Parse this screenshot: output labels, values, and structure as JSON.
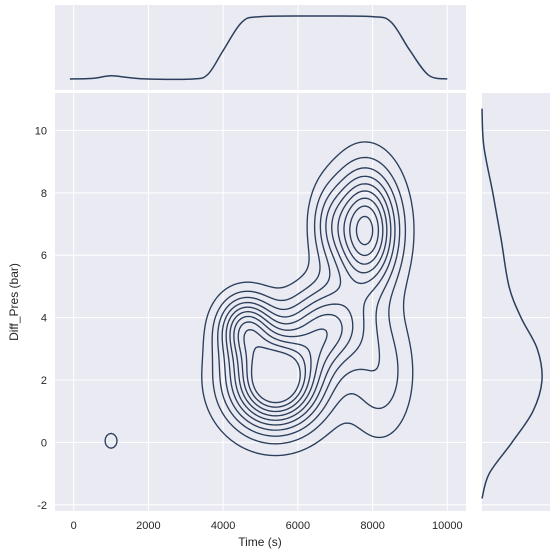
{
  "chart_data": {
    "type": "kde_joint",
    "title": "",
    "xlabel": "Time (s)",
    "ylabel": "Diff_Pres (bar)",
    "xlim": [
      -500,
      10500
    ],
    "ylim": [
      -2.2,
      11.2
    ],
    "xticks": [
      0,
      2000,
      4000,
      6000,
      8000,
      10000
    ],
    "yticks": [
      -2,
      0,
      2,
      4,
      6,
      8,
      10
    ],
    "grid": true,
    "colors": {
      "line": "#2b3f5c",
      "panel_bg": "#eaeaf2",
      "grid": "#ffffff"
    },
    "joint_density_components": [
      {
        "x": 5400,
        "y": 2.0,
        "sx": 850,
        "sy": 1.05,
        "w": 1.0
      },
      {
        "x": 7800,
        "y": 6.8,
        "sx": 600,
        "sy": 1.3,
        "w": 0.75
      },
      {
        "x": 6800,
        "y": 3.7,
        "sx": 700,
        "sy": 0.9,
        "w": 0.45
      },
      {
        "x": 4600,
        "y": 3.7,
        "sx": 500,
        "sy": 0.7,
        "w": 0.5
      },
      {
        "x": 8200,
        "y": 2.2,
        "sx": 600,
        "sy": 1.4,
        "w": 0.2
      },
      {
        "x": 6800,
        "y": 7.0,
        "sx": 350,
        "sy": 0.9,
        "w": 0.15
      },
      {
        "x": 1000,
        "y": 0.05,
        "sx": 190,
        "sy": 0.28,
        "w": 0.1
      }
    ],
    "joint_contour_levels": [
      0.07,
      0.15,
      0.23,
      0.31,
      0.39,
      0.47,
      0.55,
      0.63,
      0.71,
      0.79
    ],
    "marginal_x_density": [
      {
        "x": -100,
        "d": 0.0
      },
      {
        "x": 500,
        "d": 0.01
      },
      {
        "x": 1000,
        "d": 0.05
      },
      {
        "x": 1500,
        "d": 0.02
      },
      {
        "x": 2000,
        "d": 0.0
      },
      {
        "x": 3200,
        "d": 0.0
      },
      {
        "x": 3600,
        "d": 0.08
      },
      {
        "x": 4000,
        "d": 0.45
      },
      {
        "x": 4500,
        "d": 0.9
      },
      {
        "x": 5000,
        "d": 0.99
      },
      {
        "x": 6500,
        "d": 1.0
      },
      {
        "x": 8000,
        "d": 0.99
      },
      {
        "x": 8500,
        "d": 0.9
      },
      {
        "x": 9000,
        "d": 0.45
      },
      {
        "x": 9500,
        "d": 0.06
      },
      {
        "x": 10000,
        "d": 0.0
      }
    ],
    "marginal_y_density": [
      {
        "y": 10.7,
        "d": 0.0
      },
      {
        "y": 9.5,
        "d": 0.03
      },
      {
        "y": 8.0,
        "d": 0.18
      },
      {
        "y": 6.5,
        "d": 0.32
      },
      {
        "y": 5.0,
        "d": 0.45
      },
      {
        "y": 4.0,
        "d": 0.65
      },
      {
        "y": 3.0,
        "d": 0.92
      },
      {
        "y": 2.0,
        "d": 1.0
      },
      {
        "y": 1.0,
        "d": 0.85
      },
      {
        "y": 0.0,
        "d": 0.5
      },
      {
        "y": -1.0,
        "d": 0.12
      },
      {
        "y": -1.8,
        "d": 0.0
      }
    ]
  }
}
